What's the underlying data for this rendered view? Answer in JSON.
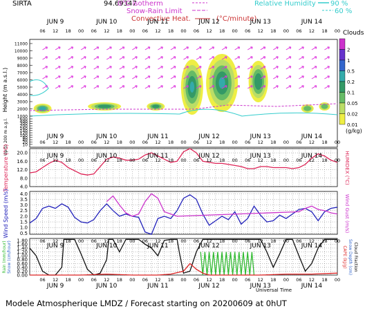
{
  "header": {
    "site": "SIRTA",
    "left_value": "94.69347",
    "isotherm_label": "0°C isotherm",
    "snow_rain_label": "Snow-Rain Limit",
    "convective_label": "Convective Heat.",
    "convective_unit": "(°C/minute)",
    "rh_label": "Relative Humidity",
    "rh_90": "90 %",
    "rh_60": "60 %"
  },
  "footer": {
    "title": "Modele Atmospherique LMDZ / Forecast starting on 20200609 at 0hUT",
    "xaxis_label": "Universal Time"
  },
  "colorbar": {
    "title": "Clouds",
    "unit": "(g/kg)",
    "labels": [
      "2",
      "1",
      "0.5",
      "0.2",
      "0.1",
      "0.05",
      "0.02",
      "0.01"
    ],
    "colors": [
      "#cc33cc",
      "#6633cc",
      "#3366cc",
      "#33aaaa",
      "#339966",
      "#66bb66",
      "#bbdd66",
      "#eeee44"
    ]
  },
  "days": [
    "JUN 9",
    "JUN 10",
    "JUN 11",
    "JUN 12",
    "JUN 13",
    "JUN 14"
  ],
  "hours": [
    "06",
    "12",
    "18",
    "00"
  ],
  "chart_data": [
    {
      "type": "heatmap",
      "title": "Clouds",
      "ylabel": "Height (m a.s.l.)",
      "ylabel_low": "Up to 200 m a.g.l.",
      "yticks": [
        "11000",
        "10000",
        "9000",
        "8000",
        "7000",
        "6000",
        "5000",
        "4000",
        "3000",
        "2000",
        "1000",
        "600",
        "400",
        "300",
        "200",
        "160",
        "140",
        "120",
        "100",
        "80",
        "40",
        "20",
        "10"
      ],
      "units": "g/kg"
    },
    {
      "type": "line",
      "ylabel": "Temperature (°C)",
      "ylabel_right": "HUMIDEX (°C)",
      "yticks": [
        "20.0",
        "16.0",
        "12.0",
        "8.0",
        "4.0"
      ],
      "ylim": [
        4,
        22
      ],
      "series": [
        {
          "color": "#dd2255",
          "x": [
            0,
            3,
            6,
            9,
            12,
            15,
            18,
            21,
            24,
            27,
            30,
            33,
            36,
            39,
            42,
            45,
            48,
            51,
            54,
            57,
            60,
            63,
            66,
            69,
            72,
            75,
            78,
            81,
            84,
            87,
            90,
            93,
            96,
            99,
            102,
            105,
            108,
            111,
            114,
            117,
            120,
            123,
            126,
            129,
            132,
            135,
            138,
            141,
            144
          ],
          "y": [
            10.5,
            11,
            13,
            15,
            16.5,
            15.5,
            13,
            11.5,
            10,
            9.5,
            10,
            13.5,
            17,
            18,
            17.5,
            16.5,
            16.5,
            17,
            19,
            20,
            18.5,
            17,
            15.5,
            16,
            20.5,
            22,
            20,
            16,
            15.5,
            15,
            15,
            14.5,
            14,
            13.5,
            12.5,
            12.5,
            13.5,
            13.5,
            13,
            13,
            13,
            12.5,
            13,
            14.5,
            17.5,
            19.5,
            18.5,
            16.5,
            15.5
          ]
        }
      ]
    },
    {
      "type": "line",
      "ylabel": "Wind Speed (m/s)",
      "ylabel_right": "Wind Gust (m/s)",
      "yticks": [
        "4.0",
        "3.5",
        "3.0",
        "2.5",
        "2.0",
        "1.5",
        "1.0",
        "0.5"
      ],
      "ylim": [
        0.4,
        4.2
      ],
      "series": [
        {
          "name": "Wind Speed",
          "color": "#2222bb",
          "x": [
            0,
            3,
            6,
            9,
            12,
            15,
            18,
            21,
            24,
            27,
            30,
            33,
            36,
            39,
            42,
            45,
            48,
            51,
            54,
            57,
            60,
            63,
            66,
            69,
            72,
            75,
            78,
            81,
            84,
            87,
            90,
            93,
            96,
            99,
            102,
            105,
            108,
            111,
            114,
            117,
            120,
            123,
            126,
            129,
            132,
            135,
            138,
            141,
            144
          ],
          "y": [
            1.4,
            1.8,
            2.7,
            2.9,
            2.7,
            3.1,
            2.8,
            1.9,
            1.5,
            1.4,
            1.7,
            2.5,
            3.1,
            2.5,
            2.0,
            2.2,
            2.0,
            1.9,
            0.6,
            0.4,
            1.8,
            2.0,
            1.8,
            2.5,
            3.6,
            3.9,
            3.5,
            2.2,
            1.2,
            1.6,
            2.0,
            1.7,
            2.4,
            1.3,
            1.8,
            2.9,
            2.1,
            1.5,
            1.6,
            2.1,
            1.8,
            2.2,
            2.6,
            2.7,
            2.4,
            1.6,
            2.4,
            2.7,
            2.8
          ]
        },
        {
          "name": "Wind Gust",
          "color": "#cc33cc",
          "x": [
            36,
            39,
            42,
            45,
            48,
            51,
            54,
            57,
            60,
            63,
            66,
            69,
            126,
            129,
            132,
            135,
            138,
            141,
            144
          ],
          "y": [
            3.3,
            3.8,
            3.0,
            2.3,
            2.0,
            2.2,
            3.3,
            4.0,
            3.6,
            2.4,
            2.2,
            2.0,
            2.4,
            2.7,
            2.9,
            2.6,
            2.5,
            2.3,
            2.2
          ]
        }
      ]
    },
    {
      "type": "line",
      "ylabel_left_1": "Rain (mm/hour)",
      "ylabel_left_2": "Snow (cm/hour)",
      "ylabel_right_1": "CAPE (kJ/g)",
      "ylabel_right_2": "Snow Depth (cm)",
      "ylabel_right_3": "Cloud Fraction",
      "yticks": [
        "1.80",
        "1.60",
        "1.40",
        "1.20",
        "1.00",
        "0.80",
        "0.60",
        "0.40",
        "0.20",
        "0.00"
      ],
      "ylim": [
        0,
        1.9
      ],
      "series": [
        {
          "name": "Cloud Fraction",
          "color": "#111111",
          "x": [
            0,
            3,
            6,
            9,
            12,
            15,
            16,
            18,
            21,
            24,
            27,
            30,
            33,
            36,
            37,
            39,
            42,
            45,
            48,
            51,
            54,
            57,
            60,
            63,
            66,
            69,
            70,
            72,
            75,
            78,
            81,
            84,
            87,
            90,
            93,
            96,
            99,
            102,
            105,
            108,
            111,
            114,
            117,
            120,
            123,
            126,
            129,
            132,
            135,
            138,
            141,
            144
          ],
          "y": [
            1.4,
            1.0,
            0.2,
            0.0,
            0.0,
            0.4,
            1.85,
            1.85,
            1.85,
            1.1,
            0.3,
            0.0,
            0.1,
            0.8,
            1.85,
            1.85,
            1.2,
            1.85,
            1.85,
            1.85,
            1.6,
            1.4,
            1.0,
            1.8,
            1.85,
            1.85,
            1.2,
            0.1,
            0.2,
            1.2,
            1.85,
            1.85,
            1.85,
            1.85,
            1.85,
            1.85,
            1.85,
            1.85,
            1.85,
            1.85,
            1.2,
            0.4,
            1.1,
            1.85,
            1.85,
            1.0,
            0.2,
            0.6,
            1.4,
            1.85,
            1.85,
            1.85
          ]
        },
        {
          "name": "Rain",
          "color": "#33bb33",
          "x": [
            80,
            81,
            82,
            83,
            84,
            85,
            86,
            87,
            88,
            89,
            90,
            91,
            92,
            93,
            94,
            95,
            96,
            97,
            98,
            99,
            100,
            101,
            102,
            103,
            104,
            105
          ],
          "y": [
            1.2,
            0.0,
            1.2,
            0.0,
            1.2,
            0.0,
            1.2,
            0.0,
            1.2,
            0.0,
            1.2,
            0.0,
            1.2,
            0.0,
            1.2,
            0.0,
            1.2,
            0.0,
            1.2,
            0.0,
            1.2,
            0.0,
            1.2,
            0.0,
            1.2,
            0.0
          ]
        },
        {
          "name": "CAPE",
          "color": "#dd2222",
          "x": [
            0,
            12,
            24,
            36,
            48,
            60,
            66,
            72,
            75,
            78,
            81,
            84,
            90,
            96,
            108,
            120,
            132,
            144
          ],
          "y": [
            0.0,
            0.0,
            0.0,
            0.05,
            0.0,
            0.0,
            0.05,
            0.2,
            0.6,
            0.3,
            0.1,
            0.0,
            0.0,
            0.0,
            0.0,
            0.05,
            0.05,
            0.1
          ]
        }
      ]
    }
  ]
}
